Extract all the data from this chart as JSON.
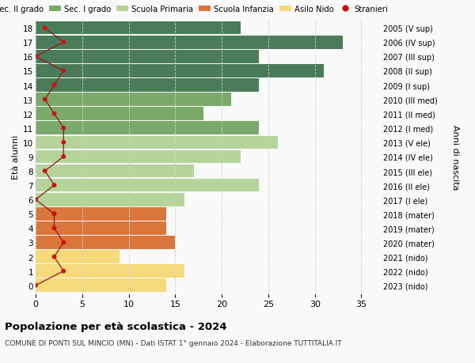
{
  "ages": [
    18,
    17,
    16,
    15,
    14,
    13,
    12,
    11,
    10,
    9,
    8,
    7,
    6,
    5,
    4,
    3,
    2,
    1,
    0
  ],
  "bar_values": [
    22,
    33,
    24,
    31,
    24,
    21,
    18,
    24,
    26,
    22,
    17,
    24,
    16,
    14,
    14,
    15,
    9,
    16,
    14
  ],
  "right_labels": [
    "2005 (V sup)",
    "2006 (IV sup)",
    "2007 (III sup)",
    "2008 (II sup)",
    "2009 (I sup)",
    "2010 (III med)",
    "2011 (II med)",
    "2012 (I med)",
    "2013 (V ele)",
    "2014 (IV ele)",
    "2015 (III ele)",
    "2016 (II ele)",
    "2017 (I ele)",
    "2018 (mater)",
    "2019 (mater)",
    "2020 (mater)",
    "2021 (nido)",
    "2022 (nido)",
    "2023 (nido)"
  ],
  "bar_colors": [
    "#4a7c59",
    "#4a7c59",
    "#4a7c59",
    "#4a7c59",
    "#4a7c59",
    "#7aaa6a",
    "#7aaa6a",
    "#7aaa6a",
    "#b5d49a",
    "#b5d49a",
    "#b5d49a",
    "#b5d49a",
    "#b5d49a",
    "#d9763c",
    "#d9763c",
    "#d9763c",
    "#f5d97a",
    "#f5d97a",
    "#f5d97a"
  ],
  "stranieri_values": [
    1,
    3,
    0,
    3,
    2,
    1,
    2,
    3,
    3,
    3,
    1,
    2,
    0,
    2,
    2,
    3,
    2,
    3,
    0
  ],
  "legend_labels": [
    "Sec. II grado",
    "Sec. I grado",
    "Scuola Primaria",
    "Scuola Infanzia",
    "Asilo Nido",
    "Stranieri"
  ],
  "legend_colors": [
    "#4a7c59",
    "#7aaa6a",
    "#b5d49a",
    "#d9763c",
    "#f5d97a",
    "#cc1111"
  ],
  "ylabel": "Età alunni",
  "right_ylabel": "Anni di nascita",
  "title": "Popolazione per età scolastica - 2024",
  "subtitle": "COMUNE DI PONTI SUL MINCIO (MN) - Dati ISTAT 1° gennaio 2024 - Elaborazione TUTTITALIA.IT",
  "xlim": [
    0,
    37
  ],
  "xticks": [
    0,
    5,
    10,
    15,
    20,
    25,
    30,
    35
  ],
  "background_color": "#f9f9f9",
  "grid_color": "#d0d0d0",
  "bar_height": 0.92
}
